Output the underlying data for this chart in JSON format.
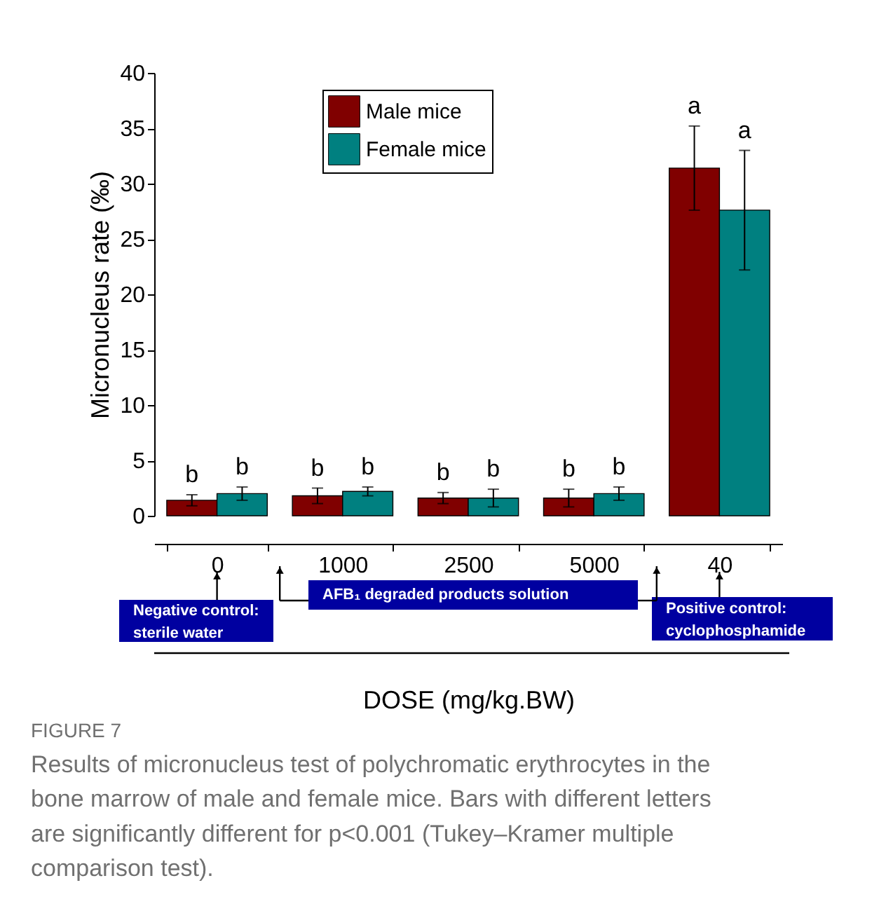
{
  "chart_data": {
    "type": "bar",
    "xlabel": "DOSE (mg/kg.BW)",
    "ylabel": "Micronucleus rate (‰)",
    "categories": [
      "0",
      "1000",
      "2500",
      "5000",
      "40"
    ],
    "series": [
      {
        "name": "Male mice",
        "color": "#800000",
        "values": [
          1.4,
          1.8,
          1.6,
          1.6,
          31.4
        ],
        "errors": [
          0.5,
          0.7,
          0.5,
          0.8,
          3.8
        ]
      },
      {
        "name": "Female mice",
        "color": "#008080",
        "values": [
          2.0,
          2.2,
          1.6,
          2.0,
          27.6
        ],
        "errors": [
          0.6,
          0.4,
          0.8,
          0.6,
          5.4
        ]
      }
    ],
    "ylim": [
      0,
      40
    ],
    "yticks": [
      0,
      5,
      10,
      15,
      20,
      25,
      30,
      35,
      40
    ],
    "grid": false,
    "legend": "top",
    "annotations": [
      "b",
      "b",
      "b",
      "b",
      "b",
      "b",
      "b",
      "b",
      "a",
      "a",
      "Negative control: sterile water",
      "AFB₁ degraded products solution",
      "Positive control: cyclophosphamide",
      "FIGURE 7",
      "Results of micronucleus test of polychromatic erythrocytes in the bone marrow of male and female mice. Bars with different letters are significantly different for p<0.001 (Tukey–Kramer multiple comparison test)."
    ]
  }
}
